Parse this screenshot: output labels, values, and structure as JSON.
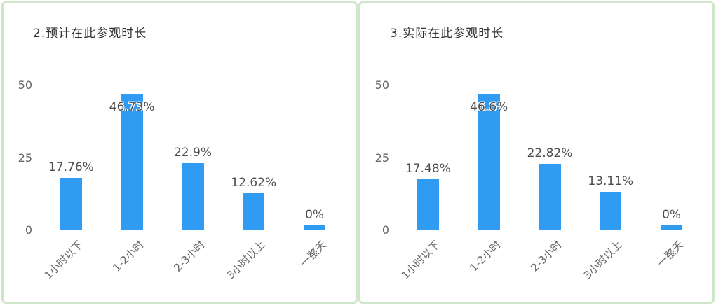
{
  "page": {
    "background": "#ffffff",
    "panel_border_color": "#cfe6ca"
  },
  "chart_data": [
    {
      "type": "bar",
      "title": "2.预计在此参观时长",
      "categories": [
        "1小时以下",
        "1-2小时",
        "2-3小时",
        "3小时以上",
        "一整天"
      ],
      "values": [
        17.76,
        46.73,
        22.9,
        12.62,
        0
      ],
      "value_labels": [
        "17.76%",
        "46.73%",
        "22.9%",
        "12.62%",
        "0%"
      ],
      "xlabel": "",
      "ylabel": "",
      "ylim": [
        0,
        50
      ],
      "yticks": [
        0,
        25,
        50
      ],
      "ytick_labels": [
        "0",
        "25",
        "50"
      ],
      "grid": false,
      "legend": null,
      "bar_color": "#2f9bf2",
      "axis_color": "#d9d9d9"
    },
    {
      "type": "bar",
      "title": "3.实际在此参观时长",
      "categories": [
        "1小时以下",
        "1-2小时",
        "2-3小时",
        "3小时以上",
        "一整天"
      ],
      "values": [
        17.48,
        46.6,
        22.82,
        13.11,
        0
      ],
      "value_labels": [
        "17.48%",
        "46.6%",
        "22.82%",
        "13.11%",
        "0%"
      ],
      "xlabel": "",
      "ylabel": "",
      "ylim": [
        0,
        50
      ],
      "yticks": [
        0,
        25,
        50
      ],
      "ytick_labels": [
        "0",
        "25",
        "50"
      ],
      "grid": false,
      "legend": null,
      "bar_color": "#2f9bf2",
      "axis_color": "#d9d9d9"
    }
  ]
}
